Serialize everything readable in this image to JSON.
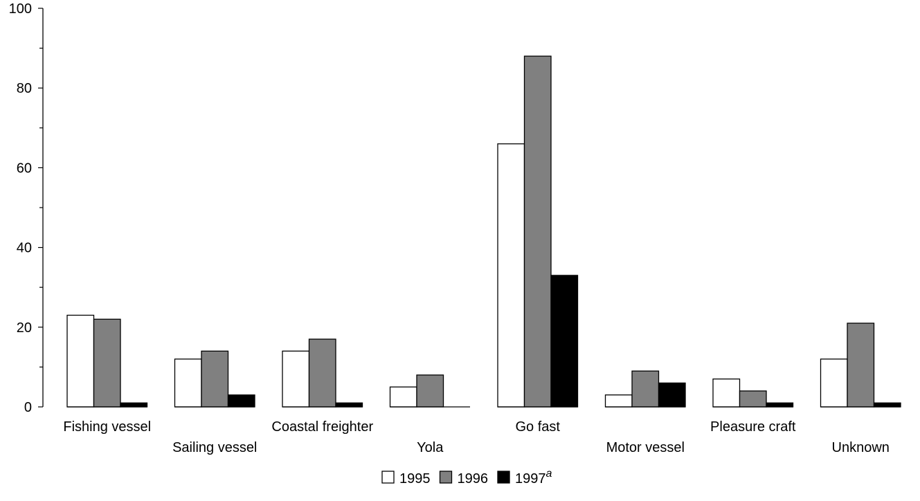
{
  "chart_data": {
    "type": "bar",
    "categories": [
      "Fishing vessel",
      "Sailing vessel",
      "Coastal freighter",
      "Yola",
      "Go fast",
      "Motor vessel",
      "Pleasure craft",
      "Unknown"
    ],
    "series": [
      {
        "name": "1995",
        "values": [
          23,
          12,
          14,
          5,
          66,
          3,
          7,
          12
        ],
        "color": "#ffffff"
      },
      {
        "name": "1996",
        "values": [
          22,
          14,
          17,
          8,
          88,
          9,
          4,
          21
        ],
        "color": "#808080"
      },
      {
        "name": "1997",
        "values": [
          1,
          3,
          1,
          0,
          33,
          6,
          1,
          1
        ],
        "color": "#000000",
        "note": "a"
      }
    ],
    "ylim": [
      0,
      100
    ],
    "yticks": [
      0,
      20,
      40,
      60,
      80,
      100
    ],
    "title": "",
    "xlabel": "",
    "ylabel": "",
    "legend": "bottom-center",
    "grid": false
  }
}
